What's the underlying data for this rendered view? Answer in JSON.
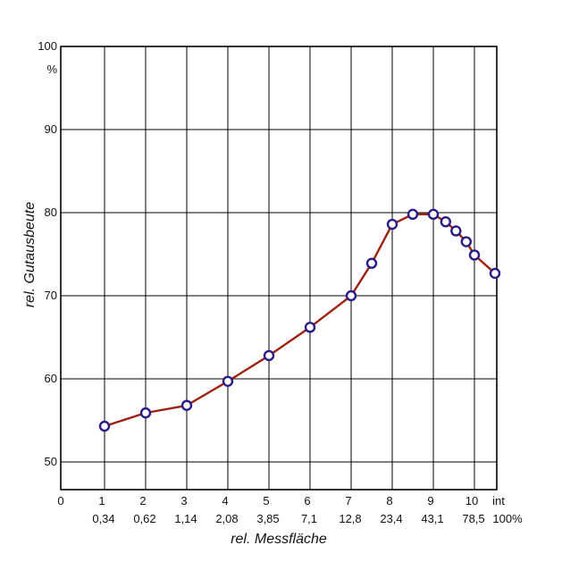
{
  "chart_data": {
    "type": "line",
    "title": "",
    "xlabel": "rel. Messfläche",
    "ylabel": "rel. Gutausbeute",
    "y_unit_label": "%",
    "ylim": [
      45,
      100
    ],
    "xlim": [
      0,
      10.5
    ],
    "grid": true,
    "x_ticks_top": [
      "0",
      "1",
      "2",
      "3",
      "4",
      "5",
      "6",
      "7",
      "8",
      "9",
      "10",
      "int"
    ],
    "x_ticks_top_pos": [
      0,
      1,
      2,
      3,
      4,
      5,
      6,
      7,
      8,
      9,
      10,
      10.5
    ],
    "x_ticks_bottom": [
      "0,34",
      "0,62",
      "1,14",
      "2,08",
      "3,85",
      "7,1",
      "12,8",
      "23,4",
      "43,1",
      "78,5",
      "100%"
    ],
    "x_ticks_bottom_pos": [
      1,
      2,
      3,
      4,
      5,
      6,
      7,
      8,
      9,
      10,
      10.5
    ],
    "y_ticks": [
      50,
      60,
      70,
      80,
      90,
      100
    ],
    "series": [
      {
        "color": "#a02010",
        "marker_color": "#2a1a8a",
        "points": [
          {
            "x": 1.0,
            "y": 54.3
          },
          {
            "x": 2.0,
            "y": 55.9
          },
          {
            "x": 3.0,
            "y": 56.8
          },
          {
            "x": 4.0,
            "y": 59.7
          },
          {
            "x": 5.0,
            "y": 62.8
          },
          {
            "x": 6.0,
            "y": 66.2
          },
          {
            "x": 7.0,
            "y": 70.0
          },
          {
            "x": 7.5,
            "y": 73.9
          },
          {
            "x": 8.0,
            "y": 78.6
          },
          {
            "x": 8.5,
            "y": 79.8
          },
          {
            "x": 9.0,
            "y": 79.8
          },
          {
            "x": 9.3,
            "y": 78.9
          },
          {
            "x": 9.55,
            "y": 77.8
          },
          {
            "x": 9.8,
            "y": 76.5
          },
          {
            "x": 10.0,
            "y": 74.9
          },
          {
            "x": 10.5,
            "y": 72.7
          }
        ]
      }
    ]
  }
}
